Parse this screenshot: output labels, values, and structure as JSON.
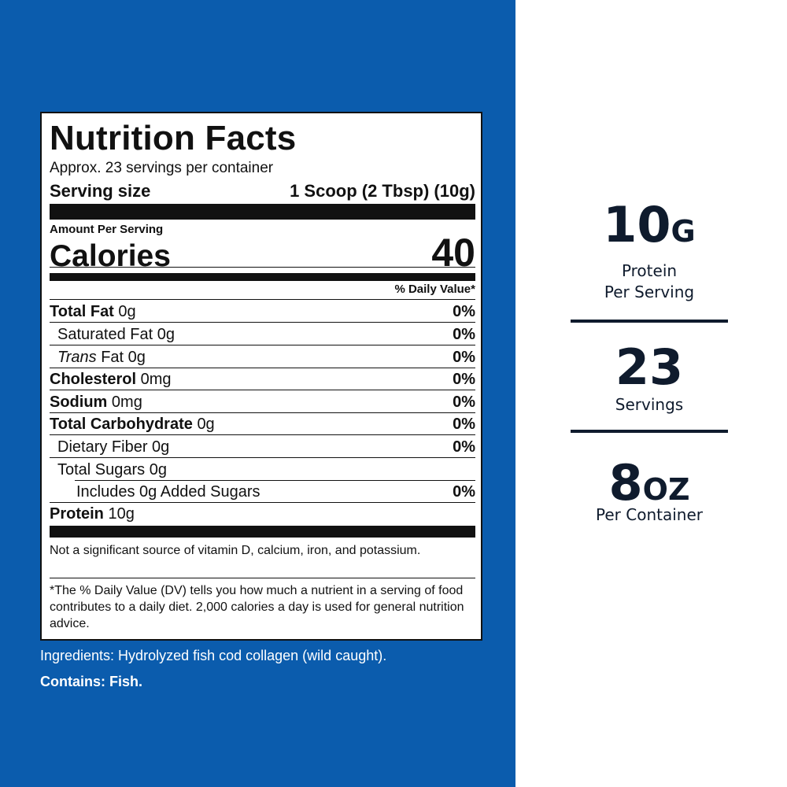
{
  "colors": {
    "brand_blue": "#0b5cad",
    "navy_text": "#0f1b2d",
    "label_black": "#111111"
  },
  "nutrition": {
    "title": "Nutrition Facts",
    "servings_per_container": "Approx. 23 servings per container",
    "serving_size_label": "Serving size",
    "serving_size_value": "1 Scoop (2 Tbsp) (10g)",
    "amount_per_serving": "Amount Per Serving",
    "calories_label": "Calories",
    "calories_value": "40",
    "dv_header": "% Daily Value*",
    "rows": [
      {
        "name": "Total Fat",
        "amount": "0g",
        "dv": "0%"
      },
      {
        "name": "Saturated Fat",
        "amount": "0g",
        "dv": "0%"
      },
      {
        "name_italic": "Trans",
        "name": " Fat",
        "amount": "0g",
        "dv": "0%"
      },
      {
        "name": "Cholesterol",
        "amount": "0mg",
        "dv": "0%"
      },
      {
        "name": "Sodium",
        "amount": "0mg",
        "dv": "0%"
      },
      {
        "name": "Total Carbohydrate",
        "amount": "0g",
        "dv": "0%"
      },
      {
        "name": "Dietary Fiber",
        "amount": "0g",
        "dv": "0%"
      },
      {
        "name": "Total Sugars",
        "amount": "0g",
        "dv": ""
      },
      {
        "name": "Includes 0g Added Sugars",
        "amount": "",
        "dv": "0%"
      },
      {
        "name": "Protein",
        "amount": "10g",
        "dv": ""
      }
    ],
    "vitamin_note": "Not a significant source of vitamin D, calcium, iron, and potassium.",
    "dv_footnote": "*The % Daily Value (DV) tells you how much a nutrient in a serving of food contributes to a daily diet. 2,000 calories a day is used for general nutrition advice."
  },
  "ingredients": "Ingredients: Hydrolyzed fish cod collagen (wild caught).",
  "contains": "Contains: Fish.",
  "stats": [
    {
      "value_main": "10",
      "value_unit": "G",
      "label_1": "Protein",
      "label_2": "Per Serving"
    },
    {
      "value_main": "23",
      "value_unit": "",
      "label_1": "Servings",
      "label_2": ""
    },
    {
      "value_main": "8",
      "value_unit": "OZ",
      "label_1": "Per Container",
      "label_2": ""
    }
  ]
}
